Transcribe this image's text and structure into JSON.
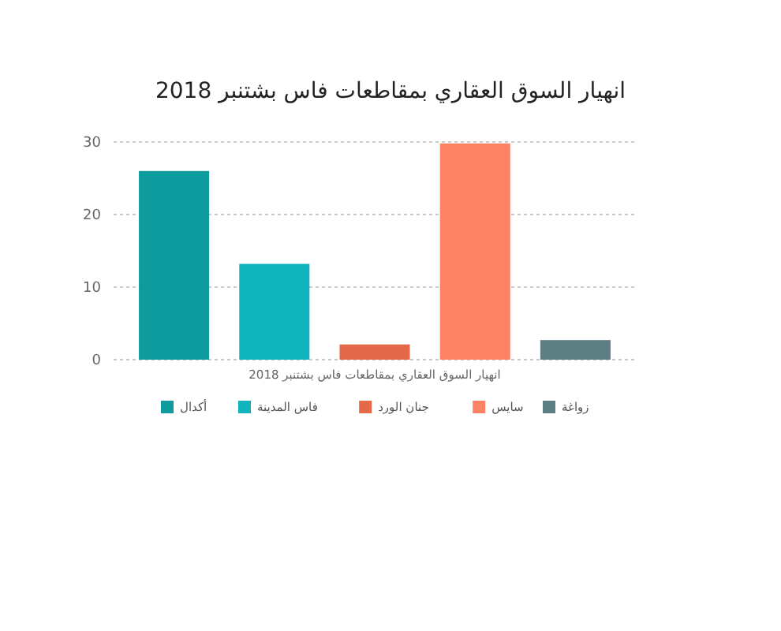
{
  "chart_data": {
    "type": "bar",
    "title": "انهيار السوق العقاري بمقاطعات فاس بشتنبر 2018",
    "xlabel": "انهيار السوق العقاري بمقاطعات فاس بشتنبر 2018",
    "categories": [
      null
    ],
    "series": [
      {
        "name": "أكدال",
        "color": "#0e9b9e",
        "values": [
          26
        ]
      },
      {
        "name": "فاس المدينة",
        "color": "#10b4bd",
        "values": [
          13.2
        ]
      },
      {
        "name": "جنان الورد",
        "color": "#e3694a",
        "values": [
          2.1
        ]
      },
      {
        "name": "سايس",
        "color": "#fb8265",
        "values": [
          29.8
        ]
      },
      {
        "name": "زواغة",
        "color": "#5d7f84",
        "values": [
          2.7
        ]
      }
    ],
    "ylim": [
      0,
      30
    ],
    "yticks": [
      0,
      10,
      20,
      30
    ],
    "grid": "y",
    "legend": "bottom"
  }
}
